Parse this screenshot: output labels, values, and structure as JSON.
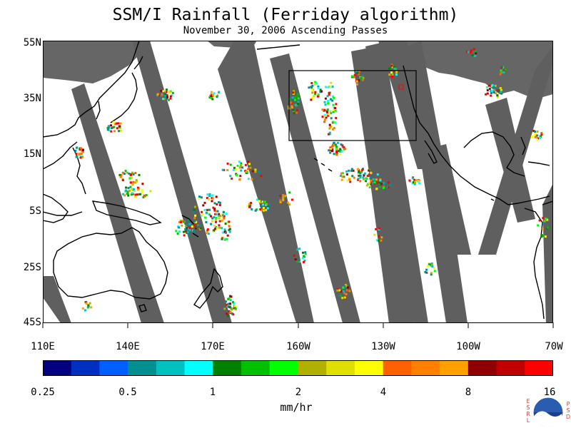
{
  "title": "SSM/I Rainfall (Ferriday algorithm)",
  "subtitle": "November 30, 2006  Ascending Passes",
  "map": {
    "lon_labels": [
      "110E",
      "140E",
      "170E",
      "160W",
      "130W",
      "100W",
      "70W"
    ],
    "lat_labels": [
      "55N",
      "35N",
      "15N",
      "5S",
      "25S",
      "45S"
    ],
    "lon_range": [
      110,
      290
    ],
    "lat_range": [
      -45,
      55
    ],
    "colors": {
      "land": "#000000",
      "missing_swath_gap": "#606060",
      "no_rain": "#ffffff"
    }
  },
  "colorbar": {
    "units": "mm/hr",
    "tick_labels": [
      "0.25",
      "0.5",
      "1",
      "2",
      "4",
      "8",
      "16"
    ],
    "colors": [
      "#000080",
      "#0030c0",
      "#0060ff",
      "#009090",
      "#00c0c0",
      "#00ffff",
      "#008000",
      "#00c000",
      "#00ff00",
      "#b0b000",
      "#e0e000",
      "#ffff00",
      "#ff6000",
      "#ff8000",
      "#ffa000",
      "#900000",
      "#c00000",
      "#ff0000"
    ]
  },
  "logo": {
    "name": "NOAA",
    "left_letters": [
      "E",
      "S",
      "R",
      "L"
    ],
    "right_letters": [
      "P",
      "S",
      "D"
    ]
  }
}
